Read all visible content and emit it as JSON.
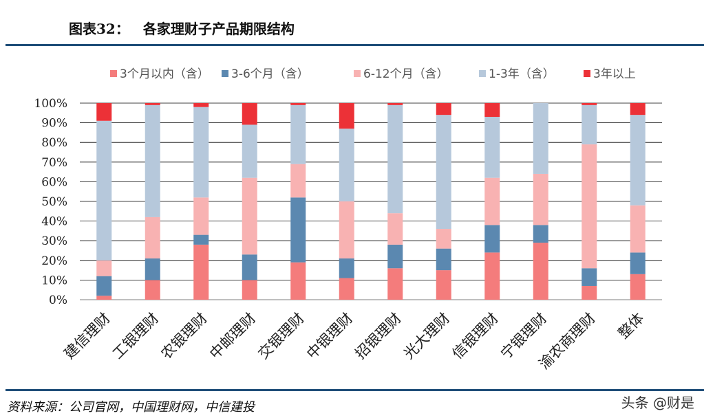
{
  "header": {
    "label": "图表32：",
    "title": "各家理财子产品期限结构"
  },
  "source": "资料来源：公司官网，中国理财网，中信建投",
  "watermark": "头条 @财是",
  "chart_data": {
    "type": "bar",
    "stacked": true,
    "ylim": [
      0,
      100
    ],
    "yticks": [
      "0%",
      "10%",
      "20%",
      "30%",
      "40%",
      "50%",
      "60%",
      "70%",
      "80%",
      "90%",
      "100%"
    ],
    "grid": true,
    "legend_position": "top",
    "categories": [
      "建信理财",
      "工银理财",
      "农银理财",
      "中邮理财",
      "交银理财",
      "中银理财",
      "招银理财",
      "光大理财",
      "信银理财",
      "宁银理财",
      "渝农商理财",
      "整体"
    ],
    "series": [
      {
        "name": "3个月以内（含）",
        "color": "#f47c7c",
        "values": [
          2,
          10,
          28,
          10,
          19,
          11,
          16,
          15,
          24,
          29,
          7,
          13
        ]
      },
      {
        "name": "3-6个月（含）",
        "color": "#5b88b0",
        "values": [
          10,
          11,
          5,
          13,
          33,
          10,
          12,
          11,
          14,
          9,
          9,
          11
        ]
      },
      {
        "name": "6-12个月（含）",
        "color": "#f8b2b2",
        "values": [
          8,
          21,
          19,
          39,
          17,
          29,
          16,
          10,
          24,
          26,
          63,
          24
        ]
      },
      {
        "name": "1-3年（含）",
        "color": "#b6c8db",
        "values": [
          71,
          57,
          46,
          27,
          30,
          37,
          55,
          58,
          31,
          36,
          20,
          46
        ]
      },
      {
        "name": "3年以上",
        "color": "#ec3137",
        "values": [
          9,
          1,
          2,
          11,
          1,
          13,
          1,
          6,
          7,
          0,
          1,
          6
        ]
      }
    ]
  }
}
